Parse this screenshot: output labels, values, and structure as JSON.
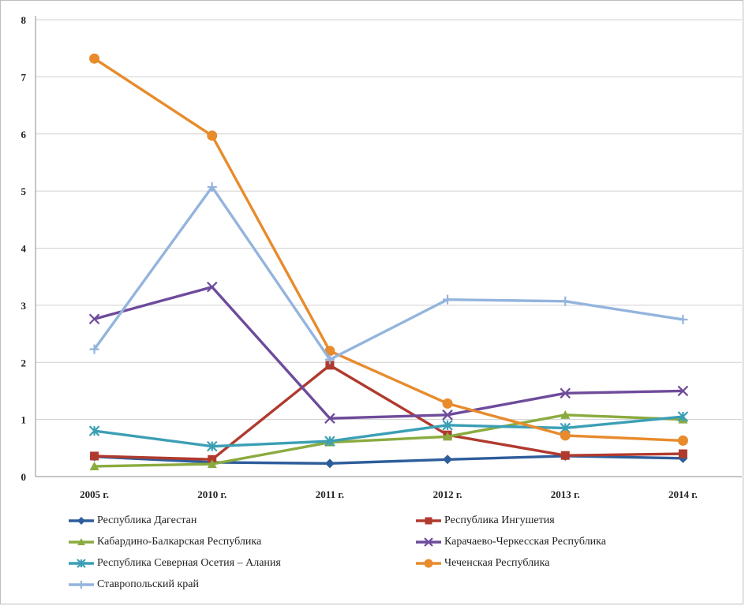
{
  "chart_data": {
    "type": "line",
    "title": "",
    "xlabel": "",
    "ylabel": "",
    "categories": [
      "2005 г.",
      "2010 г.",
      "2011 г.",
      "2012 г.",
      "2013 г.",
      "2014 г."
    ],
    "ylim": [
      0,
      8
    ],
    "yticks": [
      "0",
      "1",
      "2",
      "3",
      "4",
      "5",
      "6",
      "7",
      "8"
    ],
    "grid": true,
    "legend_position": "bottom",
    "series": [
      {
        "name": "Республика Дагестан",
        "color": "#2e5d9b",
        "marker": "diamond",
        "values": [
          0.35,
          0.25,
          0.23,
          0.3,
          0.36,
          0.32
        ]
      },
      {
        "name": "Республика Ингушетия",
        "color": "#b03a2e",
        "marker": "square",
        "values": [
          0.36,
          0.3,
          1.95,
          0.73,
          0.37,
          0.4
        ]
      },
      {
        "name": "Кабардино-Балкарская Республика",
        "color": "#8aab3f",
        "marker": "triangle",
        "values": [
          0.18,
          0.22,
          0.6,
          0.7,
          1.08,
          1.0
        ]
      },
      {
        "name": "Карачаево-Черкесская Республика",
        "color": "#6e4b9b",
        "marker": "x",
        "values": [
          2.76,
          3.32,
          1.02,
          1.08,
          1.46,
          1.5
        ]
      },
      {
        "name": "Республика Северная Осетия – Алания",
        "color": "#3b9fb5",
        "marker": "star",
        "values": [
          0.8,
          0.53,
          0.62,
          0.9,
          0.85,
          1.05
        ]
      },
      {
        "name": "Чеченская Республика",
        "color": "#e88b2c",
        "marker": "circle",
        "values": [
          7.32,
          5.97,
          2.2,
          1.28,
          0.72,
          0.63
        ]
      },
      {
        "name": "Ставропольский край",
        "color": "#94b4dd",
        "marker": "plus",
        "values": [
          2.23,
          5.07,
          2.05,
          3.1,
          3.07,
          2.75
        ]
      }
    ]
  }
}
